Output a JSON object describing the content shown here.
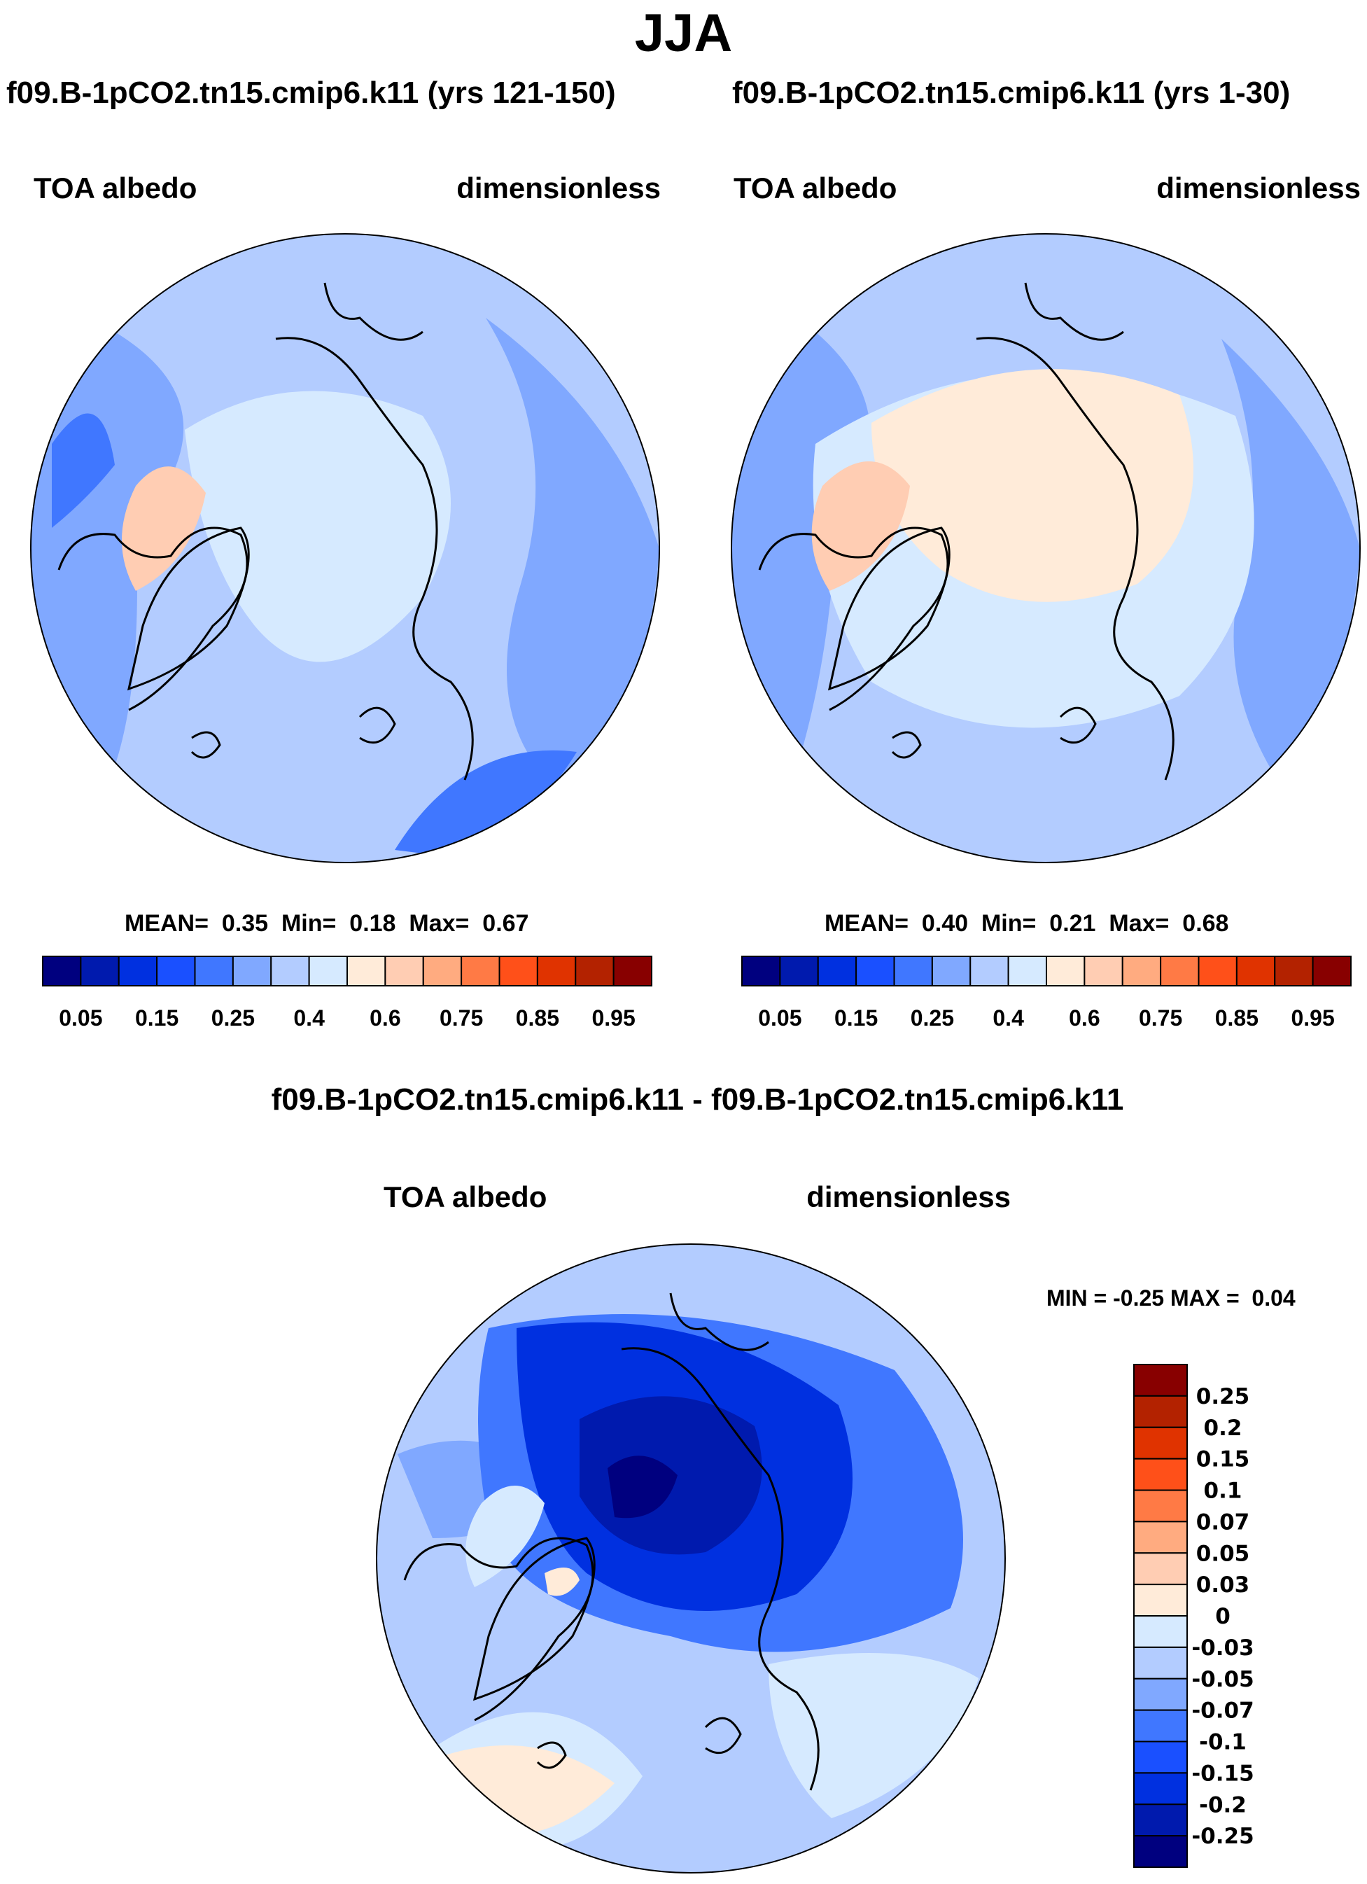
{
  "title": "JJA",
  "colors": {
    "abs_palette": [
      "#00007f",
      "#001aae",
      "#0030e0",
      "#1a50ff",
      "#4077ff",
      "#80a8ff",
      "#b3ccff",
      "#d6eaff",
      "#ffebd9",
      "#ffcdb3",
      "#ffab80",
      "#ff7a45",
      "#ff5019",
      "#e03300",
      "#b32200",
      "#880000"
    ],
    "diff_palette": [
      "#00007f",
      "#001aae",
      "#0030e0",
      "#1a50ff",
      "#4077ff",
      "#80a8ff",
      "#b3ccff",
      "#d6eaff",
      "#ffebd9",
      "#ffcdb3",
      "#ffab80",
      "#ff7a45",
      "#ff5019",
      "#e03300",
      "#b32200",
      "#880000"
    ]
  },
  "chart_data": [
    {
      "type": "heatmap",
      "title": "f09.B-1pCO2.tn15.cmip6.k11 (yrs 121-150)",
      "variable": "TOA albedo",
      "units": "dimensionless",
      "projection": "polar-stereographic-north",
      "stats": {
        "mean_label": "MEAN=",
        "mean": "0.35",
        "min_label": "Min=",
        "min": "0.18",
        "max_label": "Max=",
        "max": "0.67"
      },
      "colorbar_orientation": "horizontal",
      "tick_labels": [
        "0.05",
        "0.15",
        "0.25",
        "0.4",
        "0.6",
        "0.75",
        "0.85",
        "0.95"
      ],
      "levels": [
        0.05,
        0.1,
        0.15,
        0.2,
        0.25,
        0.3,
        0.4,
        0.5,
        0.6,
        0.7,
        0.75,
        0.8,
        0.85,
        0.9,
        0.95
      ]
    },
    {
      "type": "heatmap",
      "title": "f09.B-1pCO2.tn15.cmip6.k11 (yrs 1-30)",
      "variable": "TOA albedo",
      "units": "dimensionless",
      "projection": "polar-stereographic-north",
      "stats": {
        "mean_label": "MEAN=",
        "mean": "0.40",
        "min_label": "Min=",
        "min": "0.21",
        "max_label": "Max=",
        "max": "0.68"
      },
      "colorbar_orientation": "horizontal",
      "tick_labels": [
        "0.05",
        "0.15",
        "0.25",
        "0.4",
        "0.6",
        "0.75",
        "0.85",
        "0.95"
      ],
      "levels": [
        0.05,
        0.1,
        0.15,
        0.2,
        0.25,
        0.3,
        0.4,
        0.5,
        0.6,
        0.7,
        0.75,
        0.8,
        0.85,
        0.9,
        0.95
      ]
    },
    {
      "type": "heatmap",
      "title": "f09.B-1pCO2.tn15.cmip6.k11 - f09.B-1pCO2.tn15.cmip6.k11",
      "variable": "TOA albedo",
      "units": "dimensionless",
      "projection": "polar-stereographic-north",
      "stats": {
        "min_label": "MIN =",
        "min": "-0.25",
        "max_label": "MAX =",
        "max": "0.04"
      },
      "colorbar_orientation": "vertical",
      "tick_labels": [
        "0.25",
        "0.2",
        "0.15",
        "0.1",
        "0.07",
        "0.05",
        "0.03",
        "0",
        "-0.03",
        "-0.05",
        "-0.07",
        "-0.1",
        "-0.15",
        "-0.2",
        "-0.25"
      ],
      "levels": [
        -0.25,
        -0.2,
        -0.15,
        -0.1,
        -0.07,
        -0.05,
        -0.03,
        0,
        0.03,
        0.05,
        0.07,
        0.1,
        0.15,
        0.2,
        0.25
      ]
    }
  ]
}
